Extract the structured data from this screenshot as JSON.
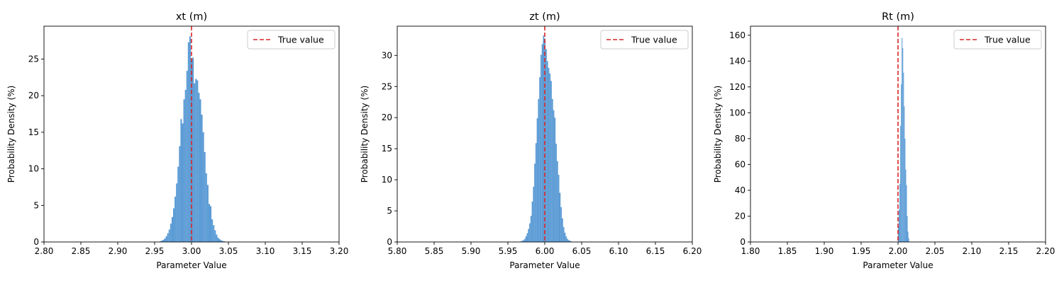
{
  "chart_data": [
    {
      "type": "histogram",
      "title": "xt (m)",
      "xlabel": "Parameter Value",
      "ylabel": "Probability Density (%)",
      "xlim": [
        2.8,
        3.2
      ],
      "ylim": [
        0,
        29.5
      ],
      "xticks": [
        2.8,
        2.85,
        2.9,
        2.95,
        3.0,
        3.05,
        3.1,
        3.15,
        3.2
      ],
      "xtick_labels": [
        "2.80",
        "2.85",
        "2.90",
        "2.95",
        "3.00",
        "3.05",
        "3.10",
        "3.15",
        "3.20"
      ],
      "yticks": [
        0,
        5,
        10,
        15,
        20,
        25
      ],
      "ytick_labels": [
        "0",
        "5",
        "10",
        "15",
        "20",
        "25"
      ],
      "bars": {
        "color": "#5b9bd5",
        "x_start": 2.957,
        "bin_width": 0.002,
        "values": [
          0.1,
          0.2,
          0.3,
          0.5,
          0.8,
          1.2,
          1.7,
          2.5,
          3.4,
          4.6,
          6.2,
          8.0,
          10.3,
          13.1,
          16.8,
          16.2,
          19.5,
          20.8,
          23.4,
          27.3,
          28.1,
          25.0,
          25.2,
          21.7,
          22.3,
          22.1,
          20.4,
          19.5,
          17.4,
          15.0,
          12.3,
          9.4,
          7.8,
          5.2,
          4.9,
          3.1,
          2.3,
          1.6,
          1.0,
          0.6,
          0.4,
          0.25,
          0.15,
          0.1,
          0.05
        ]
      },
      "true_value": 3.0,
      "legend": {
        "position": "top-right",
        "label": "True value",
        "line_color": "#d62728"
      }
    },
    {
      "type": "histogram",
      "title": "zt (m)",
      "xlabel": "Parameter Value",
      "ylabel": "Probability Density (%)",
      "xlim": [
        5.8,
        6.2
      ],
      "ylim": [
        0,
        34.7
      ],
      "xticks": [
        5.8,
        5.85,
        5.9,
        5.95,
        6.0,
        6.05,
        6.1,
        6.15,
        6.2
      ],
      "xtick_labels": [
        "5.80",
        "5.85",
        "5.90",
        "5.95",
        "6.00",
        "6.05",
        "6.10",
        "6.15",
        "6.20"
      ],
      "yticks": [
        0,
        5,
        10,
        15,
        20,
        25,
        30
      ],
      "ytick_labels": [
        "0",
        "5",
        "10",
        "15",
        "20",
        "25",
        "30"
      ],
      "bars": {
        "color": "#5b9bd5",
        "x_start": 5.967,
        "bin_width": 0.0017,
        "values": [
          0.1,
          0.2,
          0.3,
          0.5,
          0.9,
          1.4,
          2.1,
          3.0,
          4.2,
          6.5,
          8.9,
          12.6,
          15.9,
          19.9,
          23.0,
          26.5,
          30.1,
          31.8,
          33.2,
          32.7,
          31.0,
          29.1,
          28.0,
          27.1,
          25.9,
          23.0,
          21.2,
          20.0,
          15.8,
          13.0,
          10.8,
          7.9,
          5.6,
          3.8,
          2.4,
          1.5,
          0.9,
          0.5,
          0.3,
          0.2,
          0.1
        ]
      },
      "true_value": 6.0,
      "legend": {
        "position": "top-right",
        "label": "True value",
        "line_color": "#d62728"
      }
    },
    {
      "type": "histogram",
      "title": "Rt (m)",
      "xlabel": "Parameter Value",
      "ylabel": "Probability Density (%)",
      "xlim": [
        1.8,
        2.2
      ],
      "ylim": [
        0,
        167
      ],
      "xticks": [
        1.8,
        1.85,
        1.9,
        1.95,
        2.0,
        2.05,
        2.1,
        2.15,
        2.2
      ],
      "xtick_labels": [
        "1.80",
        "1.85",
        "1.90",
        "1.95",
        "2.00",
        "2.05",
        "2.10",
        "2.15",
        "2.20"
      ],
      "yticks": [
        0,
        20,
        40,
        60,
        80,
        100,
        120,
        140,
        160
      ],
      "ytick_labels": [
        "0",
        "20",
        "40",
        "60",
        "80",
        "100",
        "120",
        "140",
        "160"
      ],
      "bars": {
        "color": "#5b9bd5",
        "x_start": 2.0,
        "bin_width": 0.001,
        "values": [
          12,
          25,
          45,
          90,
          122,
          158,
          150,
          131,
          105,
          80,
          56,
          44,
          20,
          8,
          3
        ]
      },
      "true_value": 2.0,
      "legend": {
        "position": "top-right",
        "label": "True value",
        "line_color": "#d62728"
      }
    }
  ]
}
